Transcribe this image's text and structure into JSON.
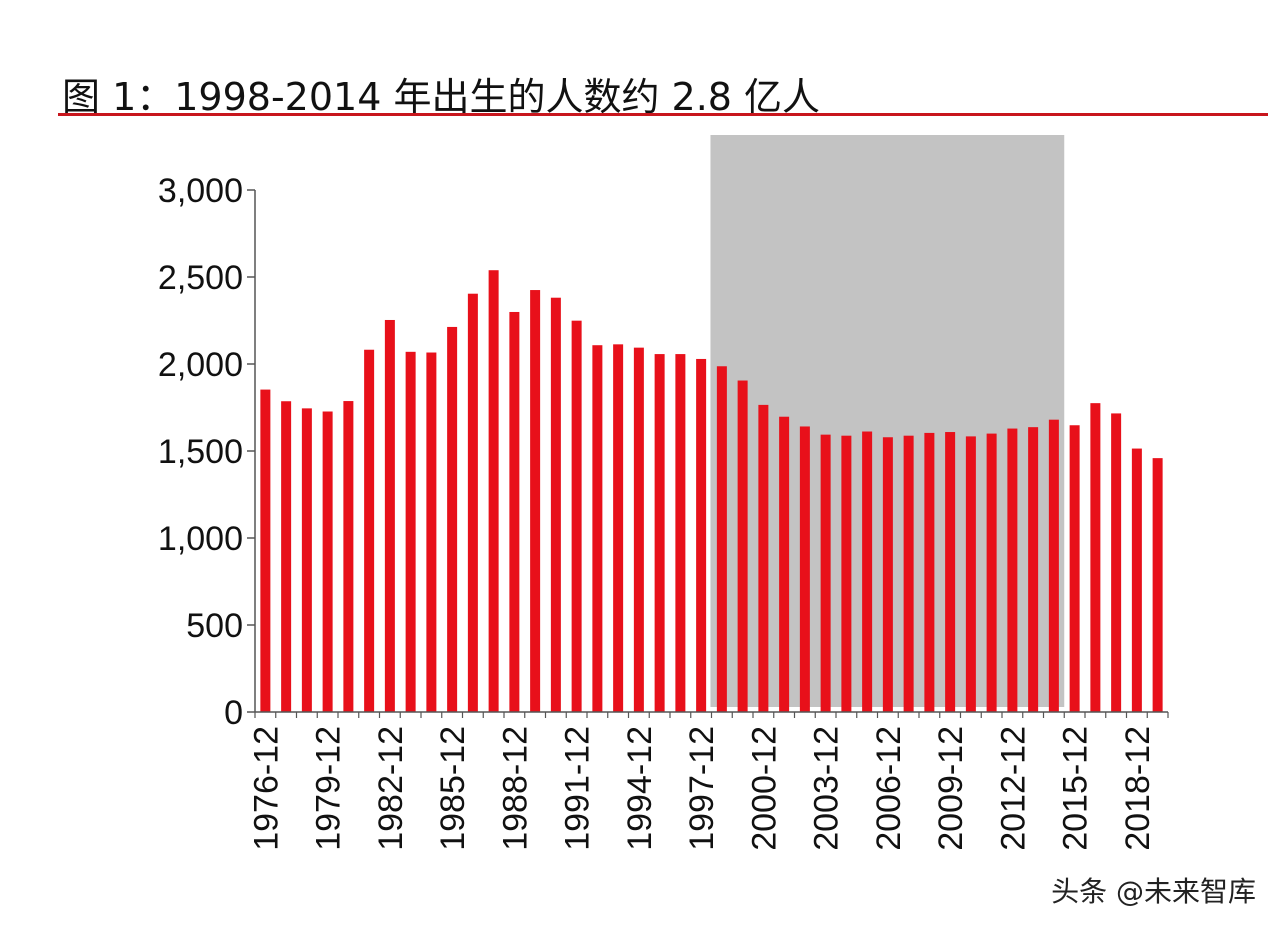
{
  "title": "图 1：1998-2014 年出生的人数约 2.8 亿人",
  "watermark": "头条 @未来智库",
  "chart_data": {
    "type": "bar",
    "title": "图 1：1998-2014 年出生的人数约 2.8 亿人",
    "xlabel": "",
    "ylabel": "",
    "ylim": [
      0,
      3000
    ],
    "yticks": [
      0,
      500,
      1000,
      1500,
      2000,
      2500,
      3000
    ],
    "ytick_labels": [
      "0",
      "500",
      "1,000",
      "1,500",
      "2,000",
      "2,500",
      "3,000"
    ],
    "categories": [
      "1976-12",
      "1977-12",
      "1978-12",
      "1979-12",
      "1980-12",
      "1981-12",
      "1982-12",
      "1983-12",
      "1984-12",
      "1985-12",
      "1986-12",
      "1987-12",
      "1988-12",
      "1989-12",
      "1990-12",
      "1991-12",
      "1992-12",
      "1993-12",
      "1994-12",
      "1995-12",
      "1996-12",
      "1997-12",
      "1998-12",
      "1999-12",
      "2000-12",
      "2001-12",
      "2002-12",
      "2003-12",
      "2004-12",
      "2005-12",
      "2006-12",
      "2007-12",
      "2008-12",
      "2009-12",
      "2010-12",
      "2011-12",
      "2012-12",
      "2013-12",
      "2014-12",
      "2015-12",
      "2016-12",
      "2017-12",
      "2018-12",
      "2019-12"
    ],
    "xtick_labels": [
      "1976-12",
      "1979-12",
      "1982-12",
      "1985-12",
      "1988-12",
      "1991-12",
      "1994-12",
      "1997-12",
      "2000-12",
      "2003-12",
      "2006-12",
      "2009-12",
      "2012-12",
      "2015-12",
      "2018-12"
    ],
    "values": [
      1853,
      1786,
      1745,
      1727,
      1787,
      2082,
      2253,
      2070,
      2066,
      2213,
      2404,
      2539,
      2299,
      2425,
      2381,
      2249,
      2108,
      2113,
      2094,
      2057,
      2057,
      2029,
      1987,
      1905,
      1765,
      1697,
      1641,
      1594,
      1588,
      1612,
      1579,
      1588,
      1604,
      1609,
      1584,
      1600,
      1629,
      1637,
      1680,
      1648,
      1775,
      1716,
      1514,
      1459
    ],
    "series_color": "#e8101a",
    "highlight": {
      "start": "1998-12",
      "end": "2014-12",
      "color": "#c3c3c3"
    },
    "grid": false,
    "legend": "none"
  }
}
